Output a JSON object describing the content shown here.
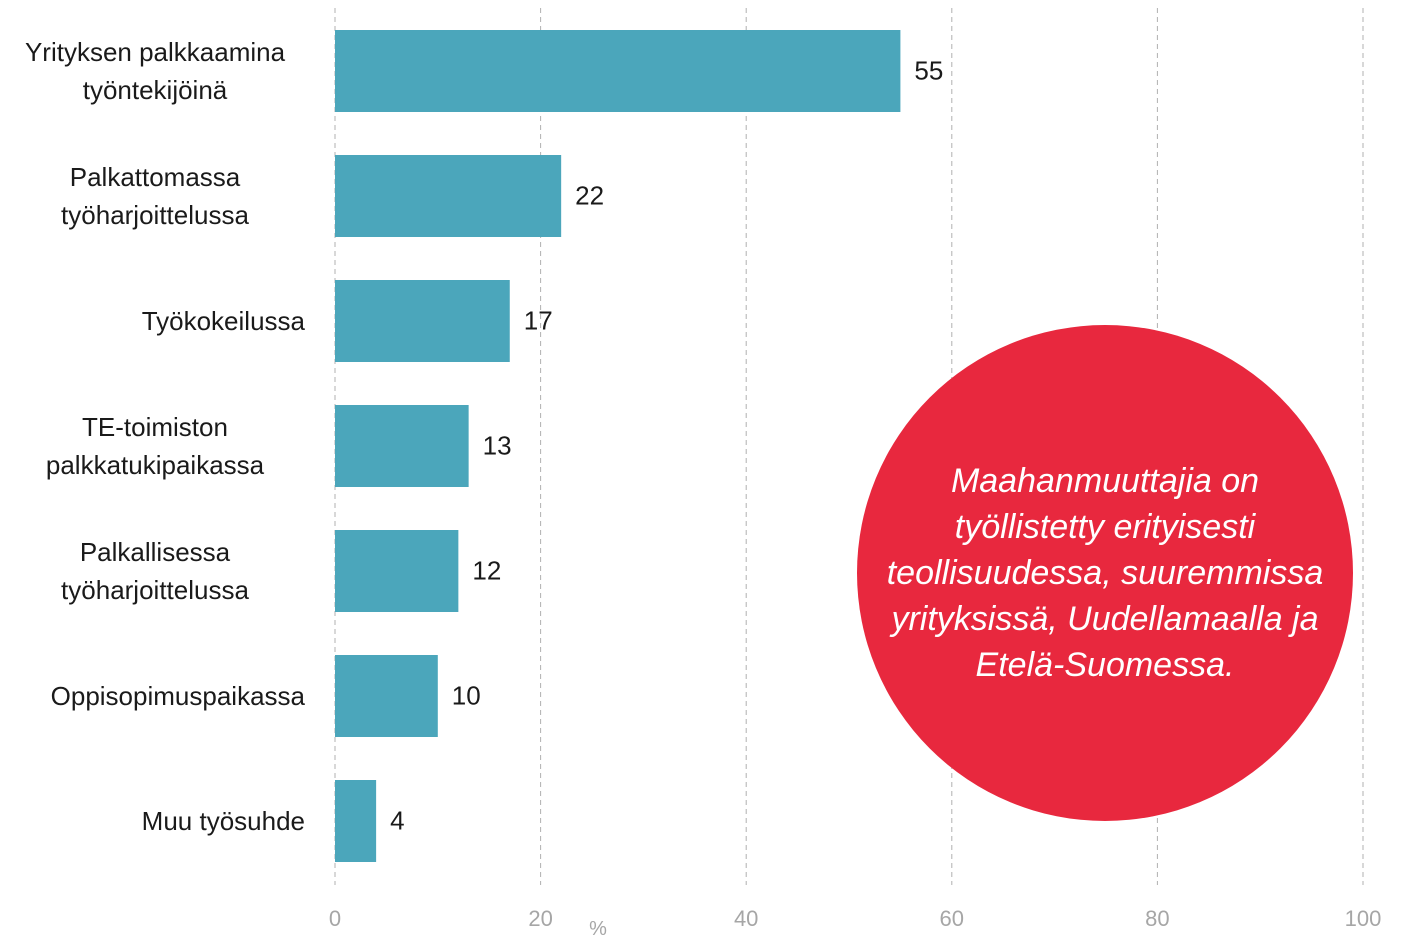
{
  "chart_data": {
    "type": "bar",
    "orientation": "horizontal",
    "categories": [
      "Yrityksen palkkaamina työntekijöinä",
      "Palkattomassa työharjoittelussa",
      "Työkokeilussa",
      "TE-toimiston palkkatukipaikassa",
      "Palkallisessa työharjoittelussa",
      "Oppisopimuspaikassa",
      "Muu työsuhde"
    ],
    "values": [
      55,
      22,
      17,
      13,
      12,
      10,
      4
    ],
    "color": "#4ba6bb",
    "xlim": [
      0,
      100
    ],
    "xticks": [
      0,
      20,
      40,
      60,
      80,
      100
    ],
    "xlabel": "%",
    "grid": true,
    "annotation": "Maahanmuuttajia on työllistetty erityisesti teollisuudessa, suuremmissa yrityksissä, Uudellamaalla ja Etelä-Suomessa.",
    "annotation_color": "#e8283e"
  }
}
